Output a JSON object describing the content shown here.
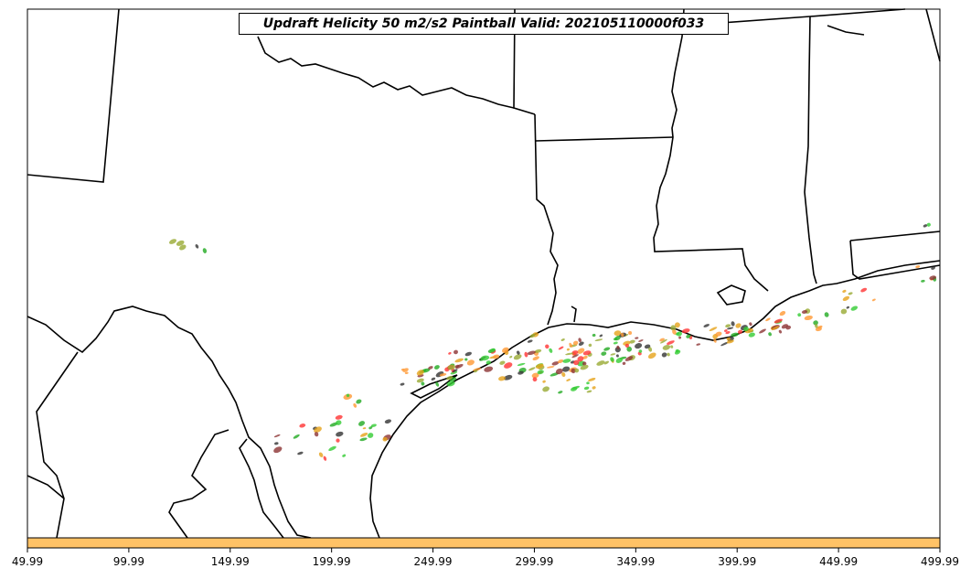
{
  "title": "Updraft Helicity 50 m2/s2 Paintball Valid: 202105110000f033",
  "colorbar": {
    "color": "#ffc266",
    "tick_labels": [
      "49.99",
      "99.99",
      "149.99",
      "199.99",
      "249.99",
      "299.99",
      "349.99",
      "399.99",
      "449.99",
      "499.99"
    ]
  },
  "colors": {
    "land_boundary": "#000000",
    "paintball_members": [
      "#ff3333",
      "#ff9933",
      "#33cc33",
      "#8c3333",
      "#333333",
      "#99aa33",
      "#e6a31a",
      "#22aa22"
    ]
  }
}
